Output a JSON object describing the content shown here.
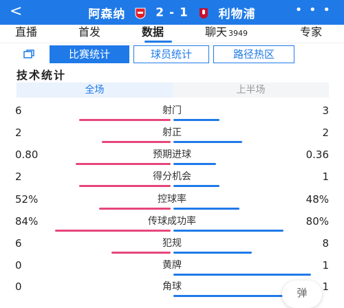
{
  "header": {
    "back_glyph": "<",
    "home_team": "阿森纳",
    "score": "2 - 1",
    "away_team": "利物浦",
    "more_glyph": "• • •",
    "home_crest_icon": "arsenal-crest-icon",
    "away_crest_icon": "liverpool-crest-icon"
  },
  "tabs": [
    {
      "label": "直播",
      "badge": ""
    },
    {
      "label": "首发",
      "badge": ""
    },
    {
      "label": "数据",
      "badge": ""
    },
    {
      "label": "聊天",
      "badge": "3949"
    },
    {
      "label": "专家",
      "badge": ""
    }
  ],
  "active_tab": "数据",
  "segments": [
    "比赛统计",
    "球员统计",
    "路径热区"
  ],
  "active_segment": "比赛统计",
  "section_title": "技术统计",
  "period_tabs": [
    "全场",
    "上半场"
  ],
  "active_period": "全场",
  "stats": [
    {
      "label": "射门",
      "home": "6",
      "away": "3",
      "home_share": 0.667,
      "away_share": 0.333
    },
    {
      "label": "射正",
      "home": "2",
      "away": "2",
      "home_share": 0.5,
      "away_share": 0.5
    },
    {
      "label": "预期进球",
      "home": "0.80",
      "away": "0.36",
      "home_share": 0.69,
      "away_share": 0.31
    },
    {
      "label": "得分机会",
      "home": "2",
      "away": "1",
      "home_share": 0.667,
      "away_share": 0.333
    },
    {
      "label": "控球率",
      "home": "52%",
      "away": "48%",
      "home_share": 0.52,
      "away_share": 0.48
    },
    {
      "label": "传球成功率",
      "home": "84%",
      "away": "80%",
      "home_share": 0.84,
      "away_share": 0.8
    },
    {
      "label": "犯规",
      "home": "6",
      "away": "8",
      "home_share": 0.43,
      "away_share": 0.57
    },
    {
      "label": "黄牌",
      "home": "0",
      "away": "1",
      "home_share": 0.0,
      "away_share": 1.0
    },
    {
      "label": "角球",
      "home": "0",
      "away": "1",
      "home_share": 0.0,
      "away_share": 1.0
    }
  ],
  "float_button_label": "弹",
  "colors": {
    "accent": "#1f7ae8",
    "home_bar": "#e6467a",
    "away_bar": "#1f7ae8"
  }
}
